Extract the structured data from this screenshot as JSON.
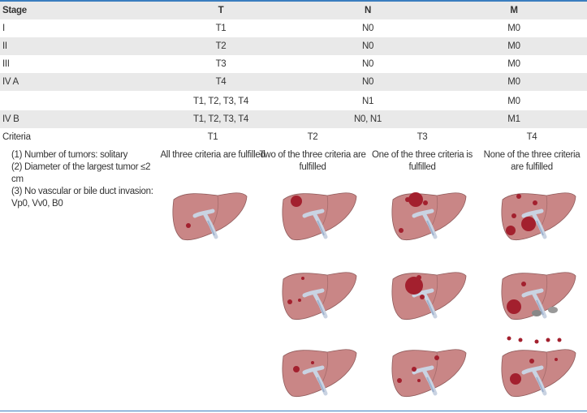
{
  "table": {
    "header": [
      "Stage",
      "T",
      "N",
      "M"
    ],
    "rows": [
      [
        "I",
        "T1",
        "N0",
        "M0"
      ],
      [
        "II",
        "T2",
        "N0",
        "M0"
      ],
      [
        "III",
        "T3",
        "N0",
        "M0"
      ],
      [
        "IV A",
        "T4",
        "N0",
        "M0"
      ],
      [
        null,
        "T1, T2, T3, T4",
        "N1",
        "M0"
      ],
      [
        "IV B",
        "T1, T2, T3, T4",
        "N0, N1",
        "M1"
      ]
    ]
  },
  "criteria": {
    "label": "Criteria",
    "list": [
      "(1) Number of tumors: solitary",
      "(2) Diameter of the largest tumor ≤2 cm",
      "(3) No vascular or bile duct invasion: Vp0, Vv0, B0"
    ],
    "columns": [
      {
        "name": "T1",
        "description": "All three criteria are fulfilled"
      },
      {
        "name": "T2",
        "description": "Two of the three criteria are fulfilled"
      },
      {
        "name": "T3",
        "description": "One of the three criteria is fulfilled"
      },
      {
        "name": "T4",
        "description": "None of the three criteria are fulfilled"
      }
    ]
  }
}
